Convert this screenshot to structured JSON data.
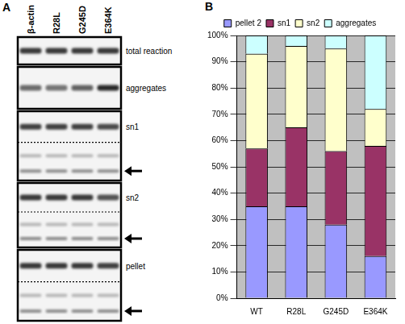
{
  "panel_a": {
    "letter": "A",
    "lanes": [
      "β-actin",
      "R28L",
      "G245D",
      "E364K"
    ],
    "rows": [
      "total reaction",
      "aggregates",
      "sn1",
      "sn2",
      "pellet"
    ]
  },
  "chart_data": {
    "letter": "B",
    "type": "bar",
    "stacked": true,
    "categories": [
      "WT",
      "R28L",
      "G245D",
      "E364K"
    ],
    "series": [
      {
        "name": "pellet 2",
        "color": "#9999ff",
        "values": [
          35,
          35,
          28,
          16
        ]
      },
      {
        "name": "sn1",
        "color": "#993366",
        "values": [
          22,
          30,
          28,
          42
        ]
      },
      {
        "name": "sn2",
        "color": "#ffffcc",
        "values": [
          36,
          31,
          39,
          14
        ]
      },
      {
        "name": "aggregates",
        "color": "#ccffff",
        "values": [
          7,
          4,
          5,
          28
        ]
      }
    ],
    "ylim": [
      0,
      100
    ],
    "yticks": [
      {
        "value": 0,
        "label": "0%"
      },
      {
        "value": 10,
        "label": "10%"
      },
      {
        "value": 20,
        "label": "20%"
      },
      {
        "value": 30,
        "label": "30%"
      },
      {
        "value": 40,
        "label": "40%"
      },
      {
        "value": 50,
        "label": "50%"
      },
      {
        "value": 60,
        "label": "60%"
      },
      {
        "value": 70,
        "label": "70%"
      },
      {
        "value": 80,
        "label": "80%"
      },
      {
        "value": 90,
        "label": "90%"
      },
      {
        "value": 100,
        "label": "100%"
      }
    ],
    "grid": true,
    "legend": "top"
  }
}
